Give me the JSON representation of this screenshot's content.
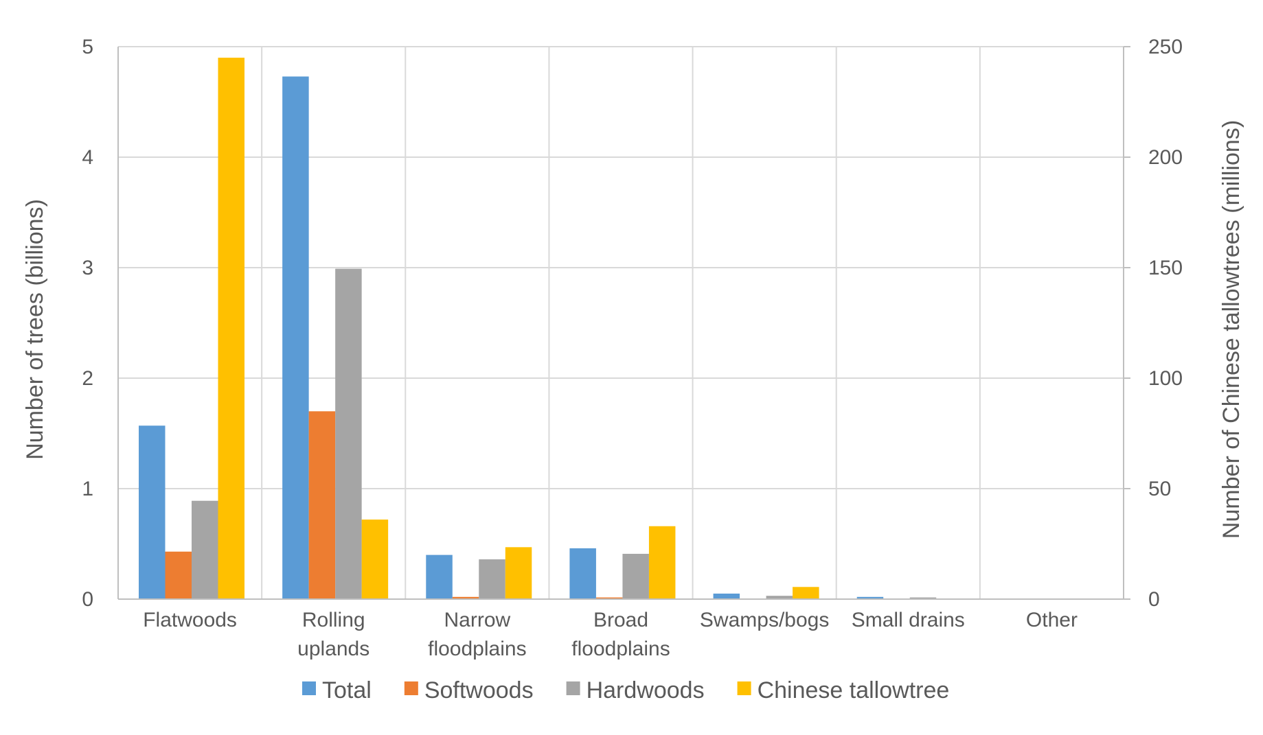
{
  "chart_data": {
    "type": "bar",
    "categories": [
      [
        "Flatwoods"
      ],
      [
        "Rolling",
        "uplands"
      ],
      [
        "Narrow",
        "floodplains"
      ],
      [
        "Broad",
        "floodplains"
      ],
      [
        "Swamps/bogs"
      ],
      [
        "Small drains"
      ],
      [
        "Other"
      ]
    ],
    "series": [
      {
        "name": "Total",
        "axis": "left",
        "color": "#5b9bd5",
        "values": [
          1.57,
          4.73,
          0.4,
          0.46,
          0.05,
          0.02,
          0.0
        ]
      },
      {
        "name": "Softwoods",
        "axis": "left",
        "color": "#ed7d31",
        "values": [
          0.43,
          1.7,
          0.02,
          0.015,
          0.0,
          0.0,
          0.0
        ]
      },
      {
        "name": "Hardwoods",
        "axis": "left",
        "color": "#a5a5a5",
        "values": [
          0.89,
          2.99,
          0.36,
          0.41,
          0.03,
          0.015,
          0.0
        ]
      },
      {
        "name": "Chinese tallowtree",
        "axis": "right",
        "color": "#ffc000",
        "values": [
          245,
          36,
          23.5,
          33,
          5.5,
          0,
          0
        ]
      }
    ],
    "ylabel": "Number of trees (billions)",
    "ylim": [
      0,
      5
    ],
    "yticks": [
      "0",
      "1",
      "2",
      "3",
      "4",
      "5"
    ],
    "y2label": "Number of Chinese tallowtrees (millions)",
    "y2lim": [
      0,
      250
    ],
    "y2ticks": [
      "0",
      "50",
      "100",
      "150",
      "200",
      "250"
    ],
    "grid": true,
    "legend_position": "bottom"
  }
}
